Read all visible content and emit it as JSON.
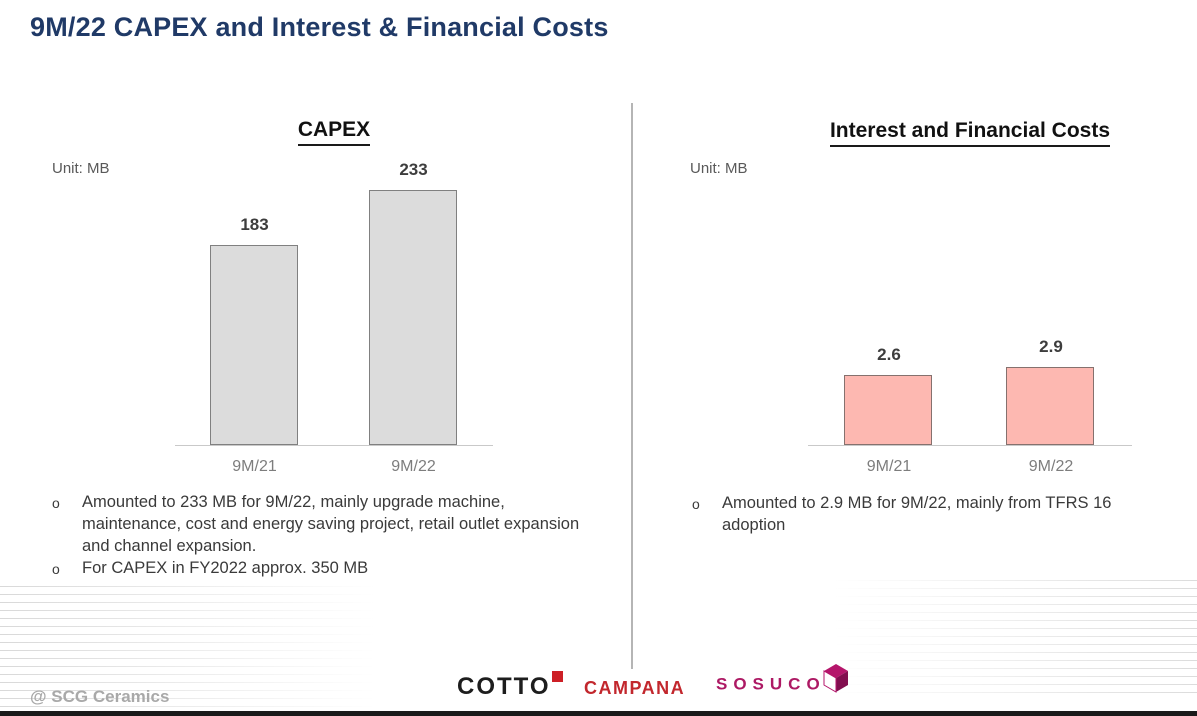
{
  "slide": {
    "title": "9M/22 CAPEX and Interest & Financial Costs"
  },
  "bullet_marker": "o",
  "left_panel": {
    "heading": "CAPEX",
    "unit_label": "Unit: MB",
    "notes": [
      "Amounted to 233 MB for 9M/22, mainly upgrade machine, maintenance, cost and energy saving project, retail outlet expansion and channel expansion.",
      "For CAPEX in FY2022 approx. 350 MB"
    ]
  },
  "right_panel": {
    "heading": "Interest and Financial Costs",
    "unit_label": "Unit: MB",
    "notes": [
      "Amounted to 2.9 MB for 9M/22, mainly from TFRS 16 adoption"
    ]
  },
  "chart_data": [
    {
      "type": "bar",
      "title": "CAPEX",
      "ylabel": "MB",
      "categories": [
        "9M/21",
        "9M/22"
      ],
      "values": [
        183,
        233
      ],
      "value_labels": [
        "183",
        "233"
      ],
      "bar_fill": "#dcdcdc",
      "bar_border": "#808080",
      "ylim": [
        0,
        260
      ],
      "grid": false,
      "legend": false
    },
    {
      "type": "bar",
      "title": "Interest and Financial Costs",
      "ylabel": "MB",
      "categories": [
        "9M/21",
        "9M/22"
      ],
      "values": [
        2.6,
        2.9
      ],
      "value_labels": [
        "2.6",
        "2.9"
      ],
      "bar_fill": "#fdb8b1",
      "bar_border": "#85716e",
      "ylim": [
        0,
        10.6
      ],
      "grid": false,
      "legend": false
    }
  ],
  "footer": {
    "watermark": "@ SCG Ceramics",
    "logos": [
      {
        "label": "COTTO"
      },
      {
        "label": "CAMPANA"
      },
      {
        "label": "SOSUCO"
      }
    ]
  },
  "colors": {
    "title": "#203a67",
    "divider": "#b5b5b5",
    "axis_line": "#c9c9c9",
    "value_label": "#3d3d3d",
    "category_label": "#7d7d7d",
    "note_text": "#3a3a3a",
    "unit_label": "#595959",
    "watermark": "#a9a9a9",
    "cotto_black": "#1d1d1d",
    "cotto_red": "#cd1f26",
    "campana_red": "#c2272d",
    "sosuco_magenta": "#ad1964",
    "bottom_bar": "#1a1a1a"
  }
}
